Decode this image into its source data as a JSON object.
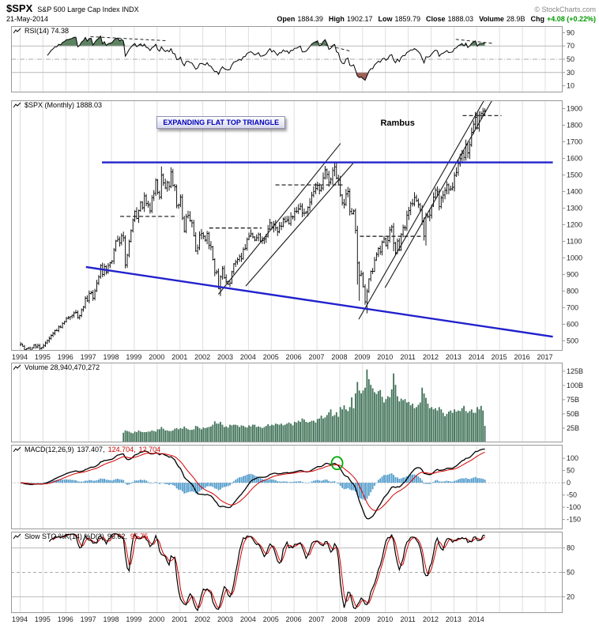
{
  "header": {
    "symbol": "$SPX",
    "name": "S&P 500 Large Cap Index INDX",
    "date": "21-May-2014",
    "copyright": "© StockCharts.com",
    "quote": {
      "open_label": "Open",
      "open": "1884.39",
      "high_label": "High",
      "high": "1902.17",
      "low_label": "Low",
      "low": "1859.79",
      "close_label": "Close",
      "close": "1888.03",
      "volume_label": "Volume",
      "volume": "28.9B",
      "chg_label": "Chg",
      "chg": "+4.08 (+0.22%)"
    }
  },
  "panels": {
    "rsi": {
      "label": "RSI(14) 74.38"
    },
    "price": {
      "label": "$SPX (Monthly) 1888.03"
    },
    "volume": {
      "label": "Volume 28,940,470,272"
    },
    "macd": {
      "label": "MACD(12,26,9)",
      "v1": "137.407,",
      "v2": "124.704,",
      "v3": "12.704"
    },
    "sto": {
      "label": "Slow STO %K(14) %D(3)",
      "v1": "96.62,",
      "v2": "95.75"
    }
  },
  "colors": {
    "blue_line": "#2121cc",
    "trendline": "#1a1a1a",
    "bar": "#000000",
    "volume": "#3f7257",
    "rsi_fill_hi": "#5c8262",
    "rsi_fill_lo": "#a05f55",
    "macd_line": "#000000",
    "macd_signal": "#d40000",
    "macd_hist": "#4f9bcb",
    "sto_k": "#000000",
    "sto_d": "#d40000",
    "circle": "#00aa00",
    "grid": "#dedede",
    "frame": "#999999",
    "chg_green": "#009900"
  },
  "chart_data": {
    "type": "multi-panel-financial",
    "title": "$SPX S&P 500 Large Cap Index monthly chart with RSI, Volume, MACD, Slow Stochastic",
    "x": {
      "unit": "month",
      "start": "1994-01",
      "end": "2014-05",
      "domain": [
        1993.62,
        2017.78
      ],
      "grid_years": [
        1994,
        1995,
        1996,
        1997,
        1998,
        1999,
        2000,
        2001,
        2002,
        2003,
        2004,
        2005,
        2006,
        2007,
        2008,
        2009,
        2010,
        2011,
        2012,
        2013,
        2014,
        2015,
        2016,
        2017
      ],
      "axis_years_main": [
        1994,
        1995,
        1996,
        1997,
        1998,
        1999,
        2000,
        2001,
        2002,
        2003,
        2004,
        2005,
        2006,
        2007,
        2008,
        2009,
        2010,
        2011,
        2012,
        2013,
        2014,
        2015,
        2016,
        2017
      ],
      "axis_years_lower": [
        1994,
        1995,
        1996,
        1997,
        1998,
        1999,
        2000,
        2001,
        2002,
        2003,
        2004,
        2005,
        2006,
        2007,
        2008,
        2009,
        2010,
        2011,
        2012,
        2013,
        2014
      ]
    },
    "panels": {
      "rsi": {
        "type": "line",
        "params": "RSI(14)",
        "current": 74.38,
        "range": [
          0,
          100
        ],
        "ticks": [
          90,
          70,
          50,
          30,
          10
        ],
        "overbought": 70,
        "oversold": 30,
        "derived_from": "price monthly closes (Wilder RSI 14)"
      },
      "price": {
        "type": "ohlc",
        "current_close": 1888.03,
        "range": [
          440,
          1950
        ],
        "ticks": [
          1900,
          1800,
          1700,
          1600,
          1500,
          1400,
          1300,
          1200,
          1100,
          1000,
          900,
          800,
          700,
          600,
          500
        ],
        "monthly_close": {
          "1994": [
            481,
            467,
            446,
            451,
            457,
            444,
            458,
            475,
            463,
            472,
            454,
            459
          ],
          "1995": [
            470,
            487,
            501,
            515,
            533,
            545,
            562,
            562,
            584,
            582,
            605,
            616
          ],
          "1996": [
            636,
            640,
            646,
            654,
            669,
            671,
            640,
            652,
            687,
            705,
            757,
            741
          ],
          "1997": [
            786,
            790,
            757,
            801,
            848,
            885,
            954,
            899,
            947,
            915,
            955,
            970
          ],
          "1998": [
            980,
            1049,
            1102,
            1112,
            1091,
            1134,
            1121,
            957,
            1017,
            1099,
            1164,
            1229
          ],
          "1999": [
            1280,
            1238,
            1286,
            1335,
            1302,
            1373,
            1329,
            1320,
            1283,
            1363,
            1389,
            1469
          ],
          "2000": [
            1394,
            1366,
            1499,
            1452,
            1421,
            1455,
            1431,
            1518,
            1437,
            1429,
            1315,
            1320
          ],
          "2001": [
            1366,
            1240,
            1160,
            1249,
            1256,
            1224,
            1211,
            1134,
            1041,
            1060,
            1139,
            1148
          ],
          "2002": [
            1130,
            1107,
            1147,
            1077,
            1067,
            990,
            911,
            916,
            815,
            886,
            936,
            880
          ],
          "2003": [
            856,
            841,
            848,
            917,
            964,
            975,
            990,
            1008,
            996,
            1051,
            1058,
            1112
          ],
          "2004": [
            1131,
            1145,
            1126,
            1107,
            1121,
            1141,
            1102,
            1104,
            1115,
            1130,
            1174,
            1212
          ],
          "2005": [
            1181,
            1204,
            1181,
            1157,
            1192,
            1191,
            1234,
            1220,
            1229,
            1207,
            1249,
            1248
          ],
          "2006": [
            1280,
            1281,
            1295,
            1311,
            1270,
            1270,
            1277,
            1304,
            1336,
            1378,
            1401,
            1418
          ],
          "2007": [
            1438,
            1407,
            1421,
            1482,
            1531,
            1503,
            1455,
            1474,
            1527,
            1549,
            1481,
            1468
          ],
          "2008": [
            1379,
            1331,
            1323,
            1386,
            1400,
            1280,
            1267,
            1283,
            1166,
            969,
            896,
            903
          ],
          "2009": [
            826,
            735,
            798,
            873,
            919,
            919,
            987,
            1021,
            1057,
            1036,
            1096,
            1115
          ],
          "2010": [
            1074,
            1104,
            1169,
            1187,
            1089,
            1031,
            1102,
            1049,
            1141,
            1183,
            1181,
            1258
          ],
          "2011": [
            1286,
            1327,
            1326,
            1364,
            1345,
            1321,
            1292,
            1219,
            1131,
            1253,
            1247,
            1258
          ],
          "2012": [
            1312,
            1366,
            1408,
            1398,
            1310,
            1362,
            1379,
            1407,
            1441,
            1412,
            1416,
            1426
          ],
          "2013": [
            1498,
            1515,
            1569,
            1598,
            1631,
            1606,
            1686,
            1633,
            1682,
            1757,
            1806,
            1848
          ],
          "2014": [
            1783,
            1859,
            1872,
            1884,
            1888
          ]
        },
        "bar_overrides": {
          "1998-08": {
            "low": 937
          },
          "2000-03": {
            "high": 1552
          },
          "2002-10": {
            "low": 769
          },
          "2007-10": {
            "high": 1576
          },
          "2008-10": {
            "low": 839
          },
          "2008-11": {
            "low": 741
          },
          "2009-03": {
            "low": 666
          },
          "2010-05": {
            "low": 1040
          },
          "2011-10": {
            "low": 1075
          },
          "2014-05": {
            "high": 1902,
            "low": 1860
          }
        }
      },
      "volume": {
        "type": "bar",
        "unit": "billions",
        "current": "28,940,470,272",
        "range": [
          0,
          140
        ],
        "ticks": [
          125,
          100,
          75,
          50,
          25
        ],
        "monthly_B": {
          "1994": [
            0,
            0,
            0,
            0,
            0,
            0,
            0,
            0,
            0,
            0,
            0,
            0
          ],
          "1995": [
            0,
            0,
            0,
            0,
            0,
            0,
            0,
            0,
            0,
            0,
            0,
            0
          ],
          "1996": [
            0,
            0,
            0,
            0,
            0,
            0,
            0,
            0,
            0,
            0,
            0,
            0
          ],
          "1997": [
            0,
            0,
            0,
            0,
            0,
            0,
            0,
            0,
            0,
            0,
            0,
            0
          ],
          "1998": [
            0,
            0,
            0,
            0,
            0,
            0,
            17,
            21,
            20,
            19,
            17,
            16
          ],
          "1999": [
            19,
            18,
            21,
            19,
            18,
            18,
            18,
            19,
            19,
            21,
            20,
            19
          ],
          "2000": [
            23,
            23,
            27,
            24,
            21,
            21,
            20,
            20,
            21,
            24,
            25,
            23
          ],
          "2001": [
            25,
            24,
            28,
            25,
            23,
            22,
            22,
            23,
            29,
            28,
            25,
            23
          ],
          "2002": [
            26,
            25,
            26,
            27,
            28,
            31,
            37,
            33,
            33,
            36,
            31,
            27
          ],
          "2003": [
            28,
            26,
            31,
            30,
            31,
            31,
            30,
            27,
            30,
            29,
            27,
            26
          ],
          "2004": [
            30,
            28,
            31,
            31,
            27,
            28,
            27,
            25,
            27,
            29,
            32,
            29
          ],
          "2005": [
            31,
            30,
            33,
            32,
            31,
            33,
            30,
            31,
            33,
            35,
            33,
            30
          ],
          "2006": [
            36,
            35,
            38,
            36,
            42,
            40,
            36,
            35,
            36,
            38,
            38,
            35
          ],
          "2007": [
            41,
            42,
            47,
            42,
            44,
            48,
            53,
            58,
            46,
            48,
            53,
            45
          ],
          "2008": [
            62,
            58,
            65,
            58,
            55,
            62,
            79,
            60,
            86,
            106,
            91,
            86
          ],
          "2009": [
            91,
            96,
            128,
            111,
            101,
            95,
            88,
            85,
            90,
            92,
            80,
            70
          ],
          "2010": [
            76,
            81,
            79,
            93,
            121,
            101,
            81,
            72,
            77,
            74,
            76,
            70
          ],
          "2011": [
            71,
            65,
            68,
            60,
            62,
            66,
            70,
            96,
            86,
            78,
            68,
            60
          ],
          "2012": [
            62,
            58,
            60,
            56,
            62,
            58,
            52,
            46,
            50,
            54,
            56,
            52
          ],
          "2013": [
            58,
            54,
            56,
            55,
            60,
            64,
            55,
            52,
            55,
            58,
            52,
            52
          ],
          "2014": [
            62,
            58,
            64,
            56,
            29
          ]
        }
      },
      "macd": {
        "type": "line+histogram",
        "params": [
          12,
          26,
          9
        ],
        "current": [
          137.407,
          124.704,
          12.704
        ],
        "range": [
          -190,
          155
        ],
        "ticks": [
          100,
          50,
          0,
          -50,
          -100,
          -150
        ],
        "derived_from": "EMA12-EMA26 of monthly closes, signal EMA9"
      },
      "sto": {
        "type": "line",
        "params": "Slow STO %K(14) %D(3)",
        "current": [
          96.62,
          95.75
        ],
        "range": [
          0,
          100
        ],
        "ticks": [
          80,
          50,
          20
        ],
        "mid": 50
      }
    },
    "annotations": {
      "flat_top": {
        "price": 1576,
        "from": 1997.6,
        "to": 2017.35
      },
      "bottom_line": {
        "t1": 1996.9,
        "p1": 945,
        "t2": 2017.35,
        "p2": 525
      },
      "trendlines": [
        [
          2002.7,
          780,
          2008.05,
          1690
        ],
        [
          2003.9,
          830,
          2008.6,
          1570
        ],
        [
          2008.85,
          630,
          2014.4,
          1965
        ],
        [
          2010.0,
          820,
          2014.75,
          1965
        ]
      ],
      "dashed_levels": [
        [
          1998.4,
          2000.9,
          1250
        ],
        [
          2002.3,
          2004.6,
          1180
        ],
        [
          2005.2,
          2008.2,
          1440
        ],
        [
          2008.9,
          2011.6,
          1130
        ],
        [
          2013.4,
          2015.1,
          1858
        ]
      ],
      "rsi_dashed": [
        [
          1997.1,
          84,
          2000.4,
          78
        ],
        [
          2006.9,
          76,
          2008.5,
          62
        ],
        [
          2013.1,
          80,
          2014.7,
          74
        ]
      ],
      "label_box": {
        "text": "EXPANDING FLAT TOP TRIANGLE",
        "t": 2000.0,
        "price": 1855
      },
      "watermark": {
        "text": "Rambus",
        "t": 2009.8,
        "price": 1842
      },
      "macd_circle": {
        "t": 2007.9,
        "value": 80
      }
    }
  }
}
